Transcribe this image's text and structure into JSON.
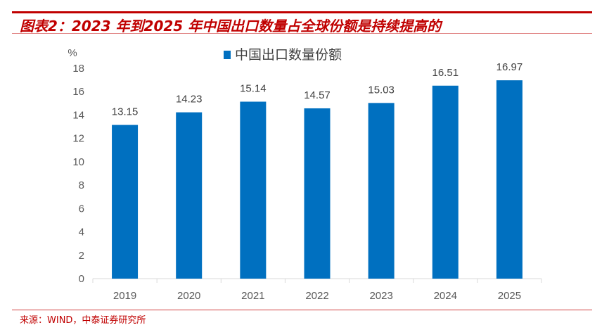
{
  "header": {
    "title": "图表2：2023 年到2025 年中国出口数量占全球份额是持续提高的"
  },
  "footer": {
    "source": "来源：WIND，中泰证券研究所"
  },
  "colors": {
    "bar": "#0070c0",
    "accent": "#c00000"
  },
  "chart_data": {
    "type": "bar",
    "title": "",
    "ylabel": "%",
    "xlabel": "",
    "categories": [
      "2019",
      "2020",
      "2021",
      "2022",
      "2023",
      "2024",
      "2025"
    ],
    "series": [
      {
        "name": "中国出口数量份额",
        "values": [
          13.15,
          14.23,
          15.14,
          14.57,
          15.03,
          16.51,
          16.97
        ]
      }
    ],
    "data_labels": [
      "13.15",
      "14.23",
      "15.14",
      "14.57",
      "15.03",
      "16.51",
      "16.97"
    ],
    "ylim": [
      0,
      18
    ],
    "yticks": [
      "0",
      "2",
      "4",
      "6",
      "8",
      "10",
      "12",
      "14",
      "16",
      "18"
    ],
    "grid": false,
    "legend": "top-center"
  }
}
